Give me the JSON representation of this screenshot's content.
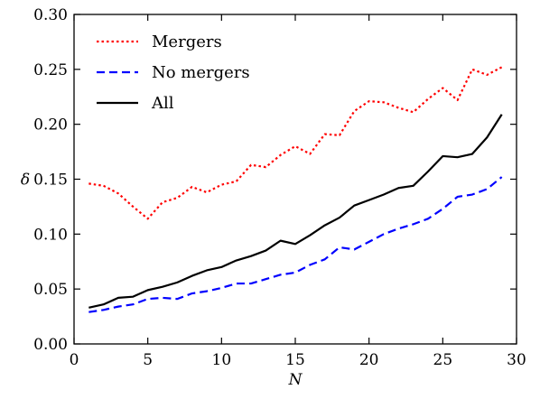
{
  "chart_data": {
    "type": "line",
    "xlabel": "N",
    "ylabel": "δ",
    "xlim": [
      0,
      30
    ],
    "ylim": [
      0.0,
      0.3
    ],
    "xticks": [
      "0",
      "5",
      "10",
      "15",
      "20",
      "25",
      "30"
    ],
    "yticks": [
      "0.00",
      "0.05",
      "0.10",
      "0.15",
      "0.20",
      "0.25",
      "0.30"
    ],
    "grid": false,
    "legend_position": "top-left",
    "x": [
      1,
      2,
      3,
      4,
      5,
      6,
      7,
      8,
      9,
      10,
      11,
      12,
      13,
      14,
      15,
      16,
      17,
      18,
      19,
      20,
      21,
      22,
      23,
      24,
      25,
      26,
      27,
      28,
      29
    ],
    "series": [
      {
        "name": "Mergers",
        "color": "#ff0000",
        "dash": "dotted",
        "values": [
          0.146,
          0.144,
          0.137,
          0.125,
          0.114,
          0.129,
          0.133,
          0.143,
          0.138,
          0.145,
          0.148,
          0.163,
          0.161,
          0.172,
          0.18,
          0.173,
          0.191,
          0.19,
          0.212,
          0.221,
          0.22,
          0.215,
          0.211,
          0.223,
          0.233,
          0.222,
          0.25,
          0.245,
          0.252
        ]
      },
      {
        "name": "No mergers",
        "color": "#0000ff",
        "dash": "dashed",
        "values": [
          0.029,
          0.031,
          0.034,
          0.036,
          0.041,
          0.042,
          0.041,
          0.046,
          0.048,
          0.051,
          0.055,
          0.055,
          0.059,
          0.063,
          0.065,
          0.072,
          0.077,
          0.088,
          0.086,
          0.093,
          0.1,
          0.105,
          0.109,
          0.114,
          0.123,
          0.134,
          0.136,
          0.141,
          0.152
        ]
      },
      {
        "name": "All",
        "color": "#000000",
        "dash": "solid",
        "values": [
          0.033,
          0.036,
          0.042,
          0.043,
          0.049,
          0.052,
          0.056,
          0.062,
          0.067,
          0.07,
          0.076,
          0.08,
          0.085,
          0.094,
          0.091,
          0.099,
          0.108,
          0.115,
          0.126,
          0.131,
          0.136,
          0.142,
          0.144,
          0.157,
          0.171,
          0.17,
          0.173,
          0.188,
          0.209
        ]
      }
    ]
  }
}
